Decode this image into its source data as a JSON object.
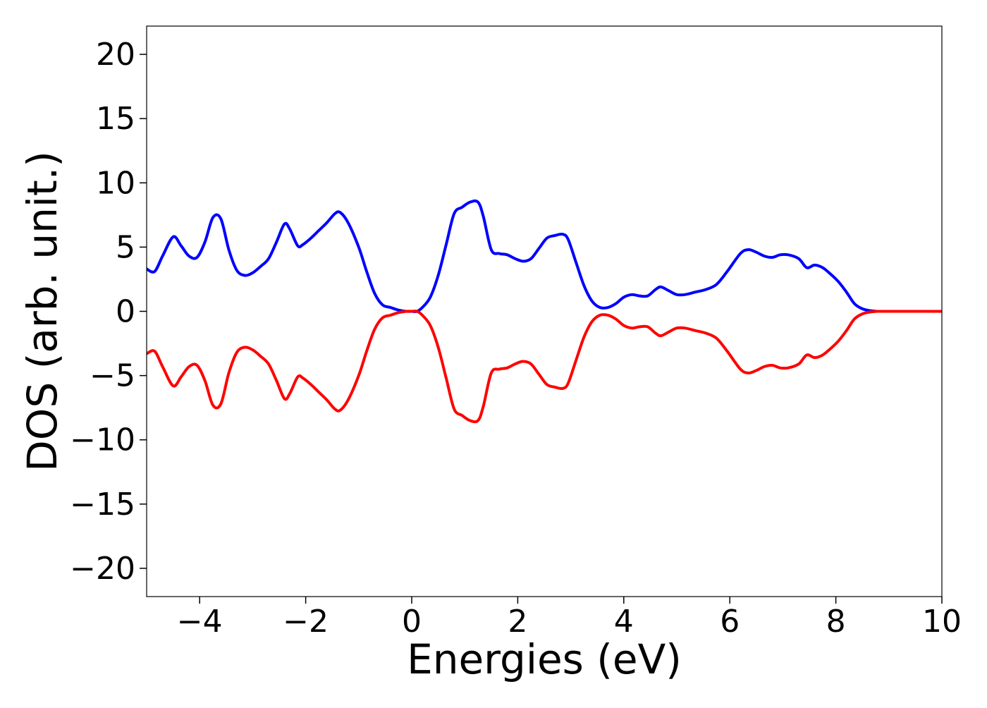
{
  "chart_data": {
    "type": "line",
    "title": "",
    "xlabel": "Energies (eV)",
    "ylabel": "DOS (arb. unit.)",
    "xlim": [
      -5,
      10
    ],
    "ylim": [
      -22.2,
      22.2
    ],
    "grid": false,
    "legend": "none",
    "xticks": [
      -4,
      -2,
      0,
      2,
      4,
      6,
      8,
      10
    ],
    "yticks": [
      -20,
      -15,
      -10,
      -5,
      0,
      5,
      10,
      15,
      20
    ],
    "xtick_labels": [
      "−4",
      "−2",
      "0",
      "2",
      "4",
      "6",
      "8",
      "10"
    ],
    "ytick_labels": [
      "−20",
      "−15",
      "−10",
      "−5",
      "0",
      "5",
      "10",
      "15",
      "20"
    ],
    "series": [
      {
        "color": "#0000ff",
        "x": [
          -5.0,
          -4.85,
          -4.7,
          -4.5,
          -4.35,
          -4.2,
          -4.05,
          -3.9,
          -3.75,
          -3.6,
          -3.45,
          -3.3,
          -3.15,
          -3.0,
          -2.85,
          -2.7,
          -2.55,
          -2.4,
          -2.3,
          -2.15,
          -2.05,
          -1.9,
          -1.75,
          -1.6,
          -1.45,
          -1.35,
          -1.2,
          -1.0,
          -0.85,
          -0.7,
          -0.55,
          -0.4,
          -0.25,
          -0.1,
          0.0,
          0.1,
          0.2,
          0.35,
          0.5,
          0.65,
          0.8,
          0.95,
          1.1,
          1.25,
          1.35,
          1.5,
          1.65,
          1.8,
          1.95,
          2.1,
          2.25,
          2.4,
          2.55,
          2.7,
          2.85,
          2.95,
          3.1,
          3.25,
          3.4,
          3.55,
          3.7,
          3.85,
          4.0,
          4.15,
          4.3,
          4.45,
          4.6,
          4.7,
          4.85,
          5.0,
          5.15,
          5.35,
          5.55,
          5.75,
          5.95,
          6.2,
          6.35,
          6.5,
          6.65,
          6.8,
          6.95,
          7.1,
          7.3,
          7.45,
          7.6,
          7.75,
          7.9,
          8.05,
          8.2,
          8.35,
          8.5,
          8.65,
          8.8,
          9.0,
          9.5,
          10.0
        ],
        "y": [
          3.3,
          3.1,
          4.3,
          5.8,
          5.1,
          4.3,
          4.2,
          5.4,
          7.3,
          7.2,
          4.8,
          3.2,
          2.8,
          3.0,
          3.5,
          4.1,
          5.4,
          6.8,
          6.4,
          5.1,
          5.2,
          5.7,
          6.3,
          6.9,
          7.6,
          7.7,
          6.9,
          5.0,
          3.1,
          1.4,
          0.5,
          0.3,
          0.1,
          0.0,
          0.0,
          0.0,
          0.3,
          1.1,
          2.8,
          5.2,
          7.6,
          8.1,
          8.5,
          8.5,
          7.4,
          4.8,
          4.5,
          4.4,
          4.1,
          3.9,
          4.1,
          4.9,
          5.7,
          5.9,
          6.0,
          5.6,
          3.8,
          2.0,
          0.8,
          0.3,
          0.3,
          0.6,
          1.1,
          1.3,
          1.2,
          1.2,
          1.7,
          1.9,
          1.6,
          1.3,
          1.3,
          1.5,
          1.7,
          2.1,
          3.1,
          4.5,
          4.8,
          4.6,
          4.3,
          4.2,
          4.4,
          4.4,
          4.1,
          3.4,
          3.6,
          3.4,
          2.9,
          2.3,
          1.5,
          0.6,
          0.2,
          0.05,
          0.0,
          0.0,
          0.0,
          0.0
        ]
      },
      {
        "color": "#ff0000",
        "x": [
          -5.0,
          -4.85,
          -4.7,
          -4.5,
          -4.35,
          -4.2,
          -4.05,
          -3.9,
          -3.75,
          -3.6,
          -3.45,
          -3.3,
          -3.15,
          -3.0,
          -2.85,
          -2.7,
          -2.55,
          -2.4,
          -2.3,
          -2.15,
          -2.05,
          -1.9,
          -1.75,
          -1.6,
          -1.45,
          -1.35,
          -1.2,
          -1.0,
          -0.85,
          -0.7,
          -0.55,
          -0.4,
          -0.25,
          -0.1,
          0.0,
          0.1,
          0.2,
          0.35,
          0.5,
          0.65,
          0.8,
          0.95,
          1.1,
          1.25,
          1.35,
          1.5,
          1.65,
          1.8,
          1.95,
          2.1,
          2.25,
          2.4,
          2.55,
          2.7,
          2.85,
          2.95,
          3.1,
          3.25,
          3.4,
          3.55,
          3.7,
          3.85,
          4.0,
          4.15,
          4.3,
          4.45,
          4.6,
          4.7,
          4.85,
          5.0,
          5.15,
          5.35,
          5.55,
          5.75,
          5.95,
          6.2,
          6.35,
          6.5,
          6.65,
          6.8,
          6.95,
          7.1,
          7.3,
          7.45,
          7.6,
          7.75,
          7.9,
          8.05,
          8.2,
          8.35,
          8.5,
          8.65,
          8.8,
          9.0,
          9.5,
          10.0
        ],
        "y": [
          -3.3,
          -3.1,
          -4.3,
          -5.8,
          -5.1,
          -4.3,
          -4.2,
          -5.4,
          -7.3,
          -7.2,
          -4.8,
          -3.2,
          -2.8,
          -3.0,
          -3.5,
          -4.1,
          -5.4,
          -6.8,
          -6.4,
          -5.1,
          -5.2,
          -5.7,
          -6.3,
          -6.9,
          -7.6,
          -7.7,
          -6.9,
          -5.0,
          -3.1,
          -1.4,
          -0.5,
          -0.3,
          -0.1,
          -0.0,
          -0.0,
          -0.0,
          -0.3,
          -1.1,
          -2.8,
          -5.2,
          -7.6,
          -8.1,
          -8.5,
          -8.5,
          -7.4,
          -4.8,
          -4.5,
          -4.4,
          -4.1,
          -3.9,
          -4.1,
          -4.9,
          -5.7,
          -5.9,
          -6.0,
          -5.6,
          -3.8,
          -2.0,
          -0.8,
          -0.3,
          -0.3,
          -0.6,
          -1.1,
          -1.3,
          -1.2,
          -1.2,
          -1.7,
          -1.9,
          -1.6,
          -1.3,
          -1.3,
          -1.5,
          -1.7,
          -2.1,
          -3.1,
          -4.5,
          -4.8,
          -4.6,
          -4.3,
          -4.2,
          -4.4,
          -4.4,
          -4.1,
          -3.4,
          -3.6,
          -3.4,
          -2.9,
          -2.3,
          -1.5,
          -0.6,
          -0.2,
          -0.05,
          -0.0,
          -0.0,
          -0.0,
          -0.0
        ]
      }
    ]
  }
}
